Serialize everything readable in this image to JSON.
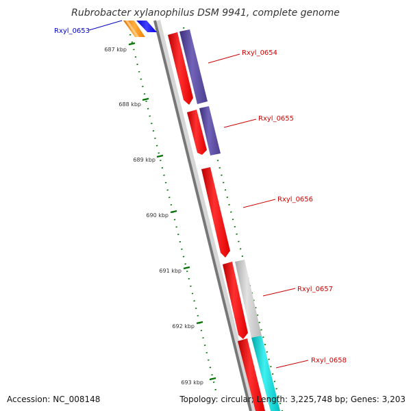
{
  "title": "Rubrobacter xylanophilus DSM 9941, complete genome",
  "accession": "Accession: NC_008148",
  "topology": "Topology: circular; Length: 3,225,748 bp; Genes: 3,203",
  "colors": {
    "background": "#ffffff",
    "backbone_dark": "#777777",
    "backbone_light": "#d6d6d6",
    "ticks": "#007000",
    "gene_label": "#cc0000",
    "gene_label_blue": "#0000cc",
    "red_feature": "#ff0000",
    "purple_feature": "#55469a",
    "gray_feature": "#c4c4c4",
    "cyan_feature": "#10d4d4",
    "orange_feature": "#ff8c00",
    "blue_feature": "#0000ff"
  },
  "kbp_labels": [
    "687 kbp",
    "688 kbp",
    "689 kbp",
    "690 kbp",
    "691 kbp",
    "692 kbp",
    "693 kbp"
  ],
  "genes": [
    {
      "name": "Rxyl_0653",
      "label_color": "blue"
    },
    {
      "name": "Rxyl_0654",
      "label_color": "red"
    },
    {
      "name": "Rxyl_0655",
      "label_color": "red"
    },
    {
      "name": "Rxyl_0656",
      "label_color": "red"
    },
    {
      "name": "Rxyl_0657",
      "label_color": "red"
    },
    {
      "name": "Rxyl_0658",
      "label_color": "red"
    }
  ]
}
